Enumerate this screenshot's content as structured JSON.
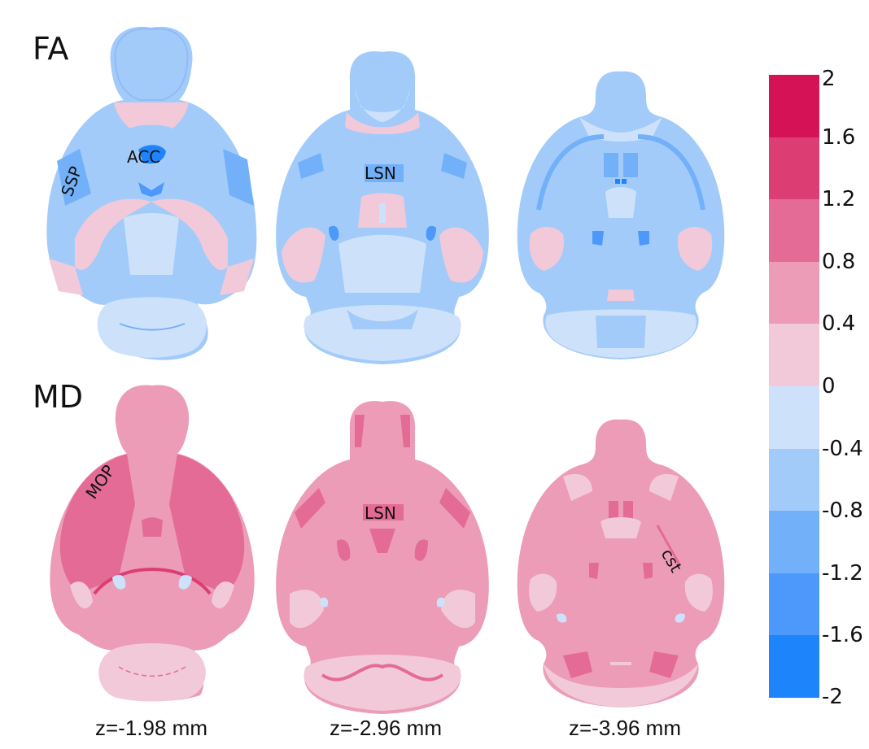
{
  "figure": {
    "rows": [
      {
        "label": "FA",
        "palette": "blue"
      },
      {
        "label": "MD",
        "palette": "pink"
      }
    ],
    "slices": [
      {
        "z_label": "z=-1.98 mm"
      },
      {
        "z_label": "z=-2.96 mm"
      },
      {
        "z_label": "z=-3.96 mm"
      }
    ],
    "region_labels": {
      "fa_1": [
        "SSP",
        "ACC"
      ],
      "fa_2": [
        "LSN"
      ],
      "md_1": [
        "MOP"
      ],
      "md_2": [
        "LSN"
      ],
      "md_3": [
        "cst"
      ]
    }
  },
  "colorbar": {
    "ticks": [
      "2",
      "1.6",
      "1.2",
      "0.8",
      "0.4",
      "0",
      "-0.4",
      "-0.8",
      "-1.2",
      "-1.6",
      "-2"
    ],
    "colors": [
      "#d51256",
      "#dc3e74",
      "#e46b95",
      "#ec9cb7",
      "#f2c9d8",
      "#cde2fa",
      "#a3cbfa",
      "#72b0fa",
      "#4c99fb",
      "#1e84fc"
    ]
  },
  "palettes": {
    "blue": {
      "base": "#a3cbfa",
      "light": "#cde2fa",
      "mid": "#72b0fa",
      "dark": "#4c99fb",
      "darkest": "#1e84fc",
      "pos": "#f2c9d8",
      "pos2": "#ec9cb7"
    },
    "pink": {
      "base": "#ec9cb7",
      "light": "#f2c9d8",
      "mid": "#e46b95",
      "dark": "#dc3e74",
      "darkest": "#d51256",
      "neg": "#cde2fa"
    }
  }
}
